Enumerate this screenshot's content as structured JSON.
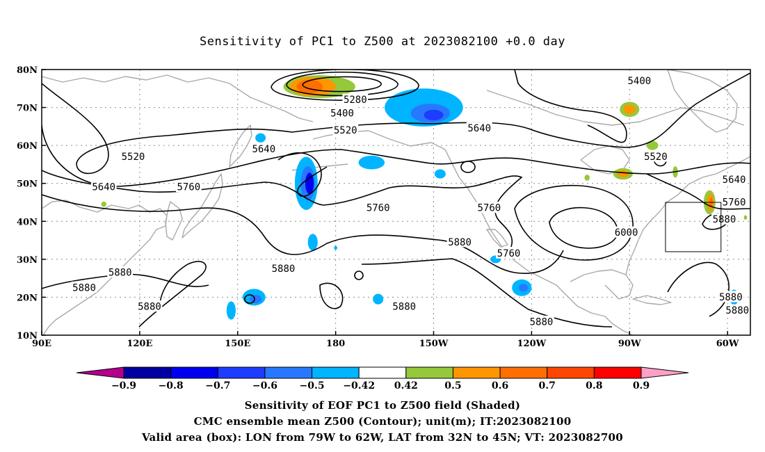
{
  "colors": {
    "coastline": "#a9a9a9",
    "contour": "#000000",
    "grid": "#8c8c8c",
    "neg_ramp": [
      "#b4008c",
      "#0000a0",
      "#0000f0",
      "#1e3cff",
      "#2878ff",
      "#00b4ff"
    ],
    "pos_ramp": [
      "#96c83c",
      "#ff9600",
      "#ff6e00",
      "#ff4600",
      "#ff0000",
      "#ffa0c8"
    ],
    "box": "#000000"
  },
  "chart_data": {
    "type": "heatmap",
    "title": "Sensitivity of PC1 to Z500 at 2023082100 +0.0 day",
    "x_ticks": [
      "90E",
      "120E",
      "150E",
      "180",
      "150W",
      "120W",
      "90W",
      "60W"
    ],
    "y_ticks": [
      "10N",
      "20N",
      "30N",
      "40N",
      "50N",
      "60N",
      "70N",
      "80N"
    ],
    "xlim_lon_east": [
      90,
      307
    ],
    "ylim_lat": [
      10,
      80
    ],
    "grid": true,
    "colorbar": {
      "levels": [
        -0.9,
        -0.8,
        -0.7,
        -0.6,
        -0.5,
        -0.42,
        0.42,
        0.5,
        0.6,
        0.7,
        0.8,
        0.9
      ],
      "labels": [
        "-0.9",
        "-0.8",
        "-0.7",
        "-0.6",
        "-0.5",
        "-0.42",
        "0.42",
        "0.5",
        "0.6",
        "0.7",
        "0.8",
        "0.9"
      ]
    },
    "contour_unit": "m",
    "contour_labels": [
      {
        "text": "5400",
        "lon": 273,
        "lat": 77
      },
      {
        "text": "5280",
        "lon": 186,
        "lat": 72
      },
      {
        "text": "5400",
        "lon": 182,
        "lat": 68.5
      },
      {
        "text": "5520",
        "lon": 183,
        "lat": 64
      },
      {
        "text": "5640",
        "lon": 224,
        "lat": 64.5
      },
      {
        "text": "5520",
        "lon": 278,
        "lat": 57
      },
      {
        "text": "5520",
        "lon": 118,
        "lat": 57
      },
      {
        "text": "5640",
        "lon": 158,
        "lat": 59
      },
      {
        "text": "5640",
        "lon": 109,
        "lat": 49
      },
      {
        "text": "5760",
        "lon": 135,
        "lat": 49
      },
      {
        "text": "5760",
        "lon": 193,
        "lat": 43.5
      },
      {
        "text": "5760",
        "lon": 227,
        "lat": 43.5
      },
      {
        "text": "5640",
        "lon": 302,
        "lat": 51
      },
      {
        "text": "5760",
        "lon": 302,
        "lat": 45
      },
      {
        "text": "5880",
        "lon": 299,
        "lat": 40.5
      },
      {
        "text": "6000",
        "lon": 269,
        "lat": 37
      },
      {
        "text": "5880",
        "lon": 218,
        "lat": 34.5
      },
      {
        "text": "5880",
        "lon": 164,
        "lat": 27.5
      },
      {
        "text": "5760",
        "lon": 233,
        "lat": 31.5
      },
      {
        "text": "5880",
        "lon": 114,
        "lat": 26.5
      },
      {
        "text": "5880",
        "lon": 103,
        "lat": 22.5
      },
      {
        "text": "5880",
        "lon": 123,
        "lat": 17.5
      },
      {
        "text": "5880",
        "lon": 201,
        "lat": 17.5
      },
      {
        "text": "5880",
        "lon": 243,
        "lat": 13.5
      },
      {
        "text": "5880",
        "lon": 301,
        "lat": 20
      },
      {
        "text": "5880",
        "lon": 303,
        "lat": 16.5
      }
    ],
    "valid_box": {
      "lon_west": 79,
      "lon_east": 62,
      "lat_south": 32,
      "lat_north": 45
    }
  },
  "captions": {
    "line1": "Sensitivity of EOF PC1 to Z500 field (Shaded)",
    "line2": "CMC ensemble mean Z500 (Contour); unit(m); IT:2023082100",
    "line3": "Valid area (box): LON from 79W to 62W, LAT from 32N to 45N; VT: 2023082700"
  }
}
